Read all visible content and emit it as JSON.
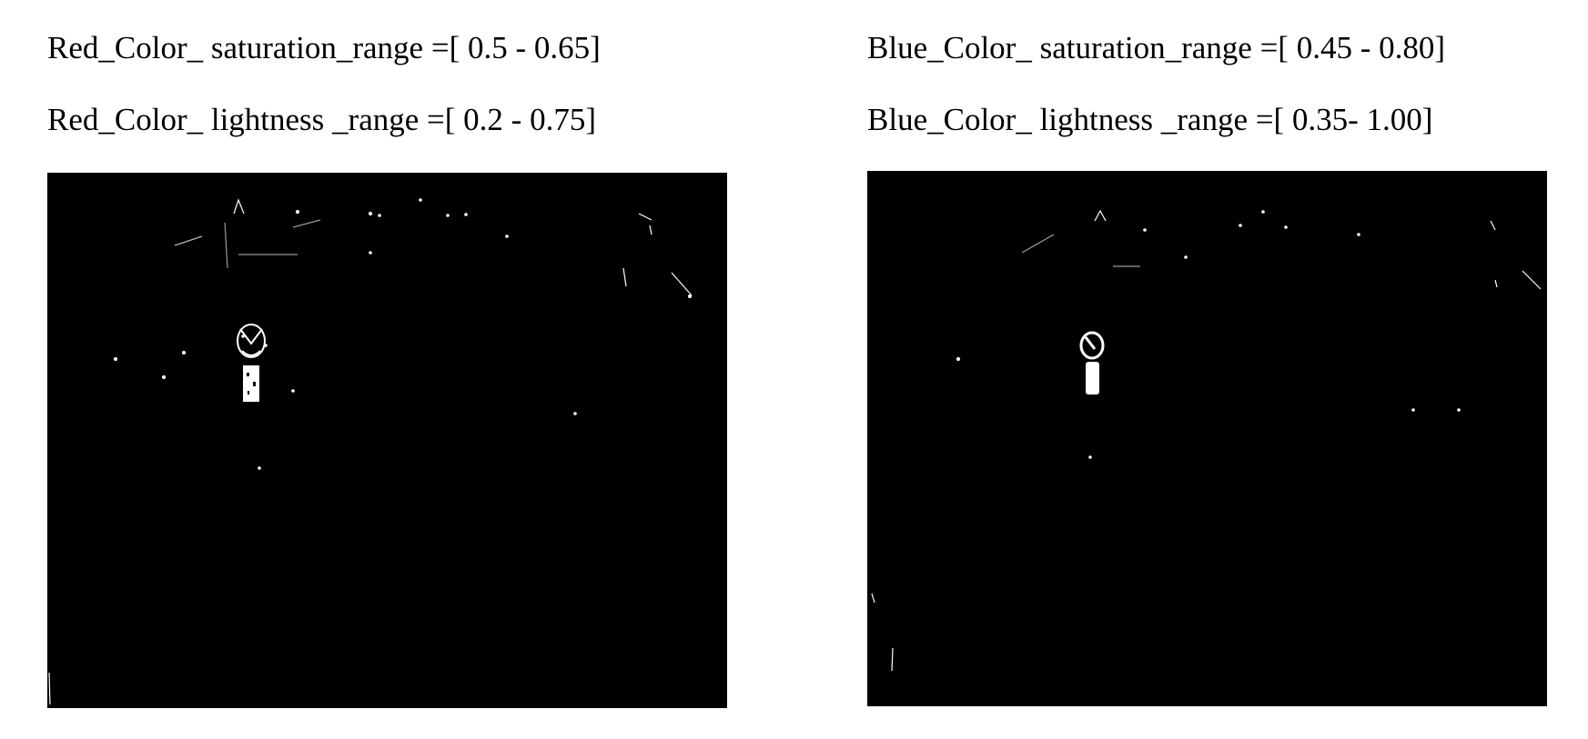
{
  "left_panel": {
    "saturation_label": "Red_Color_ saturation_range =[ 0.5 - 0.65]",
    "lightness_label": "Red_Color_ lightness _range =[ 0.2 - 0.75]",
    "mask_icon": "red-mask-image"
  },
  "right_panel": {
    "saturation_label": "Blue_Color_ saturation_range =[ 0.45 - 0.80]",
    "lightness_label": "Blue_Color_ lightness _range =[ 0.35- 1.00]",
    "mask_icon": "blue-mask-image"
  },
  "colors": {
    "background": "#ffffff",
    "mask_background": "#000000",
    "mask_foreground": "#ffffff"
  }
}
